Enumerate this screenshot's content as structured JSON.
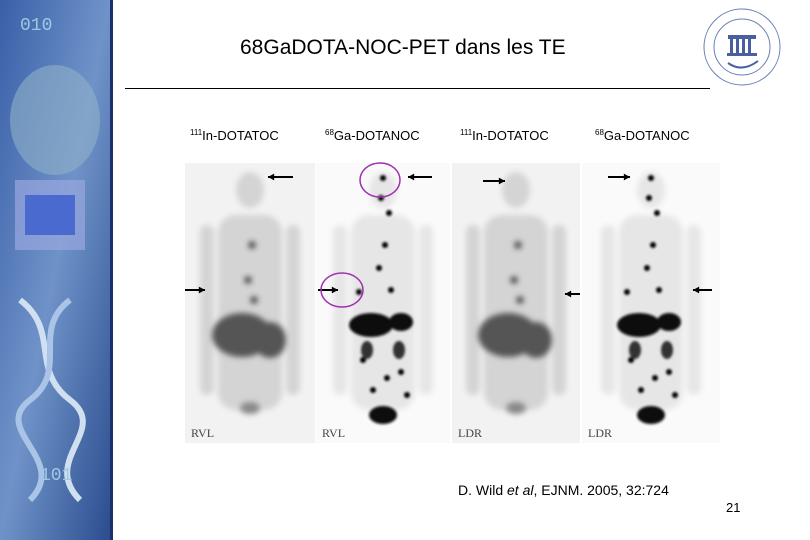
{
  "header": {
    "title": "68GaDOTA-NOC-PET dans les TE"
  },
  "panels": [
    {
      "isotope": "111",
      "tracer": "In-DOTATOC",
      "corner": "RVL"
    },
    {
      "isotope": "68",
      "tracer": "Ga-DOTANOC",
      "corner": "RVL"
    },
    {
      "isotope": "111",
      "tracer": "In-DOTATOC",
      "corner": "LDR"
    },
    {
      "isotope": "68",
      "tracer": "Ga-DOTANOC",
      "corner": "LDR"
    }
  ],
  "citation": {
    "authors": "D. Wild ",
    "etal": "et al",
    "source": ", EJNM. 2005, 32:724"
  },
  "page_number": "21"
}
